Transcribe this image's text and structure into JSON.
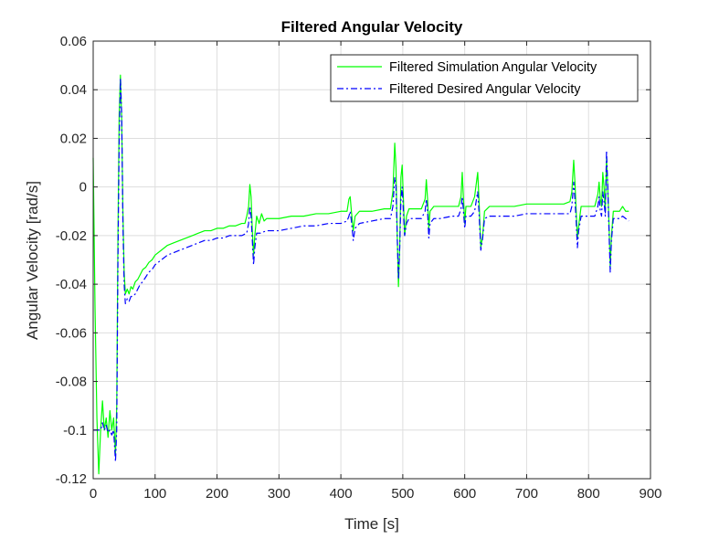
{
  "chart_data": {
    "type": "line",
    "title": "Filtered Angular Velocity",
    "xlabel": "Time [s]",
    "ylabel": "Angular Velocity [rad/s]",
    "xlim": [
      0,
      900
    ],
    "ylim": [
      -0.12,
      0.06
    ],
    "xticks": [
      "0",
      "100",
      "200",
      "300",
      "400",
      "500",
      "600",
      "700",
      "800",
      "900"
    ],
    "yticks": [
      "-0.12",
      "-0.1",
      "-0.08",
      "-0.06",
      "-0.04",
      "-0.02",
      "0",
      "0.02",
      "0.04",
      "0.06"
    ],
    "grid": true,
    "legend_position": "top-right",
    "series": [
      {
        "name": "Filtered Simulation Angular Velocity",
        "color": "#00ff00",
        "style": "solid",
        "points": [
          [
            0,
            0.012
          ],
          [
            3,
            -0.05
          ],
          [
            6,
            -0.095
          ],
          [
            9,
            -0.118
          ],
          [
            12,
            -0.1
          ],
          [
            15,
            -0.088
          ],
          [
            18,
            -0.1
          ],
          [
            21,
            -0.095
          ],
          [
            24,
            -0.103
          ],
          [
            27,
            -0.092
          ],
          [
            30,
            -0.1
          ],
          [
            33,
            -0.095
          ],
          [
            36,
            -0.11
          ],
          [
            38,
            -0.09
          ],
          [
            40,
            -0.02
          ],
          [
            42,
            0.03
          ],
          [
            44,
            0.046
          ],
          [
            46,
            0.028
          ],
          [
            48,
            -0.01
          ],
          [
            50,
            -0.035
          ],
          [
            52,
            -0.044
          ],
          [
            55,
            -0.042
          ],
          [
            58,
            -0.044
          ],
          [
            61,
            -0.041
          ],
          [
            64,
            -0.042
          ],
          [
            68,
            -0.039
          ],
          [
            72,
            -0.038
          ],
          [
            76,
            -0.036
          ],
          [
            80,
            -0.034
          ],
          [
            85,
            -0.033
          ],
          [
            90,
            -0.031
          ],
          [
            95,
            -0.03
          ],
          [
            100,
            -0.028
          ],
          [
            110,
            -0.026
          ],
          [
            120,
            -0.024
          ],
          [
            130,
            -0.023
          ],
          [
            140,
            -0.022
          ],
          [
            150,
            -0.021
          ],
          [
            160,
            -0.02
          ],
          [
            170,
            -0.019
          ],
          [
            180,
            -0.018
          ],
          [
            190,
            -0.018
          ],
          [
            200,
            -0.017
          ],
          [
            210,
            -0.017
          ],
          [
            220,
            -0.016
          ],
          [
            230,
            -0.016
          ],
          [
            240,
            -0.015
          ],
          [
            245,
            -0.015
          ],
          [
            248,
            -0.012
          ],
          [
            251,
            -0.008
          ],
          [
            253,
            0.001
          ],
          [
            255,
            -0.004
          ],
          [
            257,
            -0.018
          ],
          [
            259,
            -0.028
          ],
          [
            261,
            -0.02
          ],
          [
            264,
            -0.012
          ],
          [
            268,
            -0.015
          ],
          [
            272,
            -0.011
          ],
          [
            276,
            -0.014
          ],
          [
            280,
            -0.013
          ],
          [
            300,
            -0.013
          ],
          [
            320,
            -0.012
          ],
          [
            340,
            -0.012
          ],
          [
            360,
            -0.011
          ],
          [
            380,
            -0.011
          ],
          [
            400,
            -0.01
          ],
          [
            410,
            -0.01
          ],
          [
            413,
            -0.005
          ],
          [
            415,
            -0.004
          ],
          [
            417,
            -0.01
          ],
          [
            420,
            -0.018
          ],
          [
            423,
            -0.012
          ],
          [
            430,
            -0.01
          ],
          [
            450,
            -0.01
          ],
          [
            470,
            -0.009
          ],
          [
            480,
            -0.009
          ],
          [
            484,
            -0.002
          ],
          [
            487,
            0.018
          ],
          [
            489,
            0.008
          ],
          [
            491,
            -0.02
          ],
          [
            493,
            -0.041
          ],
          [
            495,
            -0.025
          ],
          [
            497,
            0.004
          ],
          [
            499,
            0.009
          ],
          [
            501,
            -0.005
          ],
          [
            503,
            -0.02
          ],
          [
            506,
            -0.012
          ],
          [
            510,
            -0.009
          ],
          [
            520,
            -0.009
          ],
          [
            530,
            -0.009
          ],
          [
            536,
            -0.005
          ],
          [
            538,
            0.003
          ],
          [
            540,
            -0.005
          ],
          [
            542,
            -0.017
          ],
          [
            544,
            -0.01
          ],
          [
            550,
            -0.008
          ],
          [
            560,
            -0.008
          ],
          [
            580,
            -0.008
          ],
          [
            590,
            -0.008
          ],
          [
            594,
            -0.004
          ],
          [
            596,
            0.006
          ],
          [
            598,
            -0.005
          ],
          [
            600,
            -0.015
          ],
          [
            602,
            -0.008
          ],
          [
            610,
            -0.008
          ],
          [
            616,
            -0.004
          ],
          [
            619,
            0.002
          ],
          [
            621,
            0.006
          ],
          [
            623,
            -0.005
          ],
          [
            626,
            -0.025
          ],
          [
            629,
            -0.02
          ],
          [
            632,
            -0.01
          ],
          [
            640,
            -0.008
          ],
          [
            660,
            -0.008
          ],
          [
            680,
            -0.008
          ],
          [
            700,
            -0.007
          ],
          [
            720,
            -0.007
          ],
          [
            740,
            -0.007
          ],
          [
            760,
            -0.007
          ],
          [
            770,
            -0.006
          ],
          [
            773,
            -0.002
          ],
          [
            776,
            0.011
          ],
          [
            778,
            0.002
          ],
          [
            780,
            -0.01
          ],
          [
            782,
            -0.021
          ],
          [
            784,
            -0.016
          ],
          [
            788,
            -0.008
          ],
          [
            800,
            -0.008
          ],
          [
            810,
            -0.008
          ],
          [
            815,
            -0.003
          ],
          [
            817,
            0.002
          ],
          [
            819,
            -0.005
          ],
          [
            821,
            -0.008
          ],
          [
            823,
            0.006
          ],
          [
            825,
            0.0
          ],
          [
            827,
            -0.01
          ],
          [
            829,
            0.012
          ],
          [
            831,
            0.0
          ],
          [
            833,
            -0.015
          ],
          [
            835,
            -0.033
          ],
          [
            837,
            -0.02
          ],
          [
            840,
            -0.01
          ],
          [
            845,
            -0.01
          ],
          [
            850,
            -0.01
          ],
          [
            855,
            -0.008
          ],
          [
            860,
            -0.01
          ],
          [
            865,
            -0.01
          ]
        ]
      },
      {
        "name": "Filtered Desired Angular Velocity",
        "color": "#0000ff",
        "style": "dashdot",
        "points": [
          [
            0,
            -0.1
          ],
          [
            8,
            -0.1
          ],
          [
            12,
            -0.1
          ],
          [
            15,
            -0.097
          ],
          [
            18,
            -0.1
          ],
          [
            21,
            -0.098
          ],
          [
            24,
            -0.101
          ],
          [
            27,
            -0.1
          ],
          [
            30,
            -0.102
          ],
          [
            33,
            -0.1
          ],
          [
            36,
            -0.113
          ],
          [
            38,
            -0.1
          ],
          [
            40,
            -0.03
          ],
          [
            42,
            0.02
          ],
          [
            44,
            0.045
          ],
          [
            46,
            0.03
          ],
          [
            48,
            -0.015
          ],
          [
            50,
            -0.04
          ],
          [
            52,
            -0.048
          ],
          [
            55,
            -0.046
          ],
          [
            58,
            -0.047
          ],
          [
            61,
            -0.045
          ],
          [
            64,
            -0.045
          ],
          [
            68,
            -0.044
          ],
          [
            72,
            -0.042
          ],
          [
            76,
            -0.04
          ],
          [
            80,
            -0.039
          ],
          [
            85,
            -0.037
          ],
          [
            90,
            -0.035
          ],
          [
            95,
            -0.034
          ],
          [
            100,
            -0.032
          ],
          [
            110,
            -0.03
          ],
          [
            120,
            -0.028
          ],
          [
            130,
            -0.027
          ],
          [
            140,
            -0.026
          ],
          [
            150,
            -0.025
          ],
          [
            160,
            -0.024
          ],
          [
            170,
            -0.023
          ],
          [
            180,
            -0.022
          ],
          [
            190,
            -0.022
          ],
          [
            200,
            -0.021
          ],
          [
            210,
            -0.021
          ],
          [
            220,
            -0.02
          ],
          [
            230,
            -0.02
          ],
          [
            240,
            -0.02
          ],
          [
            248,
            -0.019
          ],
          [
            251,
            -0.015
          ],
          [
            253,
            -0.008
          ],
          [
            255,
            -0.012
          ],
          [
            257,
            -0.022
          ],
          [
            259,
            -0.032
          ],
          [
            261,
            -0.025
          ],
          [
            264,
            -0.019
          ],
          [
            270,
            -0.019
          ],
          [
            280,
            -0.018
          ],
          [
            300,
            -0.018
          ],
          [
            320,
            -0.017
          ],
          [
            340,
            -0.016
          ],
          [
            360,
            -0.016
          ],
          [
            380,
            -0.015
          ],
          [
            400,
            -0.015
          ],
          [
            410,
            -0.014
          ],
          [
            413,
            -0.012
          ],
          [
            415,
            -0.01
          ],
          [
            417,
            -0.014
          ],
          [
            420,
            -0.022
          ],
          [
            423,
            -0.017
          ],
          [
            430,
            -0.015
          ],
          [
            450,
            -0.014
          ],
          [
            470,
            -0.013
          ],
          [
            480,
            -0.013
          ],
          [
            484,
            -0.008
          ],
          [
            487,
            0.004
          ],
          [
            489,
            0.0
          ],
          [
            491,
            -0.02
          ],
          [
            493,
            -0.038
          ],
          [
            495,
            -0.025
          ],
          [
            497,
            -0.005
          ],
          [
            499,
            0.0
          ],
          [
            501,
            -0.01
          ],
          [
            503,
            -0.02
          ],
          [
            506,
            -0.015
          ],
          [
            510,
            -0.013
          ],
          [
            520,
            -0.013
          ],
          [
            530,
            -0.013
          ],
          [
            536,
            -0.01
          ],
          [
            538,
            -0.005
          ],
          [
            540,
            -0.01
          ],
          [
            542,
            -0.021
          ],
          [
            544,
            -0.015
          ],
          [
            550,
            -0.013
          ],
          [
            560,
            -0.013
          ],
          [
            580,
            -0.012
          ],
          [
            590,
            -0.012
          ],
          [
            594,
            -0.009
          ],
          [
            596,
            -0.004
          ],
          [
            598,
            -0.01
          ],
          [
            600,
            -0.017
          ],
          [
            602,
            -0.012
          ],
          [
            610,
            -0.012
          ],
          [
            616,
            -0.01
          ],
          [
            619,
            -0.005
          ],
          [
            621,
            -0.002
          ],
          [
            623,
            -0.01
          ],
          [
            626,
            -0.026
          ],
          [
            629,
            -0.021
          ],
          [
            632,
            -0.013
          ],
          [
            640,
            -0.012
          ],
          [
            660,
            -0.012
          ],
          [
            680,
            -0.012
          ],
          [
            700,
            -0.011
          ],
          [
            720,
            -0.011
          ],
          [
            740,
            -0.011
          ],
          [
            760,
            -0.011
          ],
          [
            770,
            -0.011
          ],
          [
            773,
            -0.008
          ],
          [
            776,
            0.002
          ],
          [
            778,
            -0.005
          ],
          [
            780,
            -0.014
          ],
          [
            782,
            -0.025
          ],
          [
            784,
            -0.018
          ],
          [
            788,
            -0.012
          ],
          [
            800,
            -0.012
          ],
          [
            810,
            -0.012
          ],
          [
            815,
            -0.008
          ],
          [
            817,
            -0.004
          ],
          [
            819,
            -0.01
          ],
          [
            821,
            -0.012
          ],
          [
            823,
            -0.002
          ],
          [
            825,
            -0.006
          ],
          [
            827,
            -0.012
          ],
          [
            829,
            0.015
          ],
          [
            831,
            0.0
          ],
          [
            833,
            -0.018
          ],
          [
            835,
            -0.035
          ],
          [
            837,
            -0.022
          ],
          [
            840,
            -0.013
          ],
          [
            845,
            -0.013
          ],
          [
            850,
            -0.013
          ],
          [
            855,
            -0.012
          ],
          [
            860,
            -0.013
          ],
          [
            865,
            -0.014
          ]
        ]
      }
    ]
  }
}
